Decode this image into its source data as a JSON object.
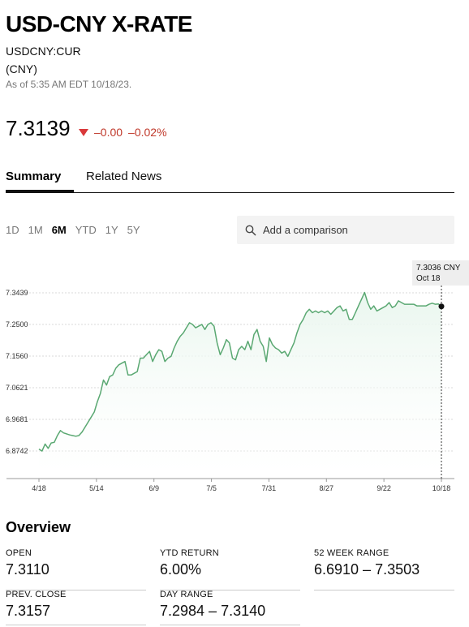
{
  "header": {
    "title": "USD-CNY X-RATE",
    "ticker": "USDCNY:CUR",
    "currency": "(CNY)",
    "as_of": "As of 5:35 AM EDT 10/18/23."
  },
  "quote": {
    "price": "7.3139",
    "change": "–0.00",
    "change_pct": "–0.02%",
    "direction": "down",
    "down_color": "#d9383a"
  },
  "tabs": [
    {
      "label": "Summary",
      "active": true
    },
    {
      "label": "Related News",
      "active": false
    }
  ],
  "ranges": [
    "1D",
    "1M",
    "6M",
    "YTD",
    "1Y",
    "5Y"
  ],
  "active_range": "6M",
  "compare": {
    "placeholder": "Add a comparison",
    "icon": "search-icon"
  },
  "chart_data": {
    "type": "area",
    "line_color": "#5aa872",
    "fill_color": "#e9f6ee",
    "x_tick_labels": [
      "4/18",
      "5/14",
      "6/9",
      "7/5",
      "7/31",
      "8/27",
      "9/22",
      "10/18"
    ],
    "y_tick_labels": [
      "7.3439",
      "7.2500",
      "7.1560",
      "7.0621",
      "6.9681",
      "6.8742"
    ],
    "ylim": [
      6.8742,
      7.3439
    ],
    "grid": "horizontal dashed",
    "tooltip": {
      "value": "7.3036 CNY",
      "date": "Oct 18"
    },
    "series": [
      {
        "x": [
          "4/18",
          "4/19",
          "4/20",
          "4/21",
          "4/24",
          "4/25",
          "4/26",
          "4/27",
          "4/28",
          "5/1",
          "5/2",
          "5/3",
          "5/4",
          "5/5",
          "5/8",
          "5/9",
          "5/10",
          "5/11",
          "5/12",
          "5/15",
          "5/16",
          "5/17",
          "5/18",
          "5/19",
          "5/22",
          "5/23",
          "5/24",
          "5/25",
          "5/26",
          "5/29",
          "5/30",
          "5/31",
          "6/1",
          "6/2",
          "6/5",
          "6/6",
          "6/7",
          "6/8",
          "6/9",
          "6/12",
          "6/13",
          "6/14",
          "6/15",
          "6/16",
          "6/19",
          "6/20",
          "6/21",
          "6/22",
          "6/23",
          "6/26",
          "6/27",
          "6/28",
          "6/29",
          "6/30",
          "7/3",
          "7/4",
          "7/5",
          "7/6",
          "7/7",
          "7/10",
          "7/11",
          "7/12",
          "7/13",
          "7/14",
          "7/17",
          "7/18",
          "7/19",
          "7/20",
          "7/21",
          "7/24",
          "7/25",
          "7/26",
          "7/27",
          "7/28",
          "7/31",
          "8/1",
          "8/2",
          "8/3",
          "8/4",
          "8/7",
          "8/8",
          "8/9",
          "8/10",
          "8/11",
          "8/14",
          "8/15",
          "8/16",
          "8/17",
          "8/18",
          "8/21",
          "8/22",
          "8/23",
          "8/24",
          "8/25",
          "8/28",
          "8/29",
          "8/30",
          "8/31",
          "9/1",
          "9/4",
          "9/5",
          "9/6",
          "9/7",
          "9/8",
          "9/11",
          "9/12",
          "9/13",
          "9/14",
          "9/15",
          "9/18",
          "9/19",
          "9/20",
          "9/21",
          "9/22",
          "9/25",
          "9/26",
          "9/27",
          "9/28",
          "9/29",
          "10/2",
          "10/3",
          "10/4",
          "10/5",
          "10/6",
          "10/9",
          "10/10",
          "10/11",
          "10/12",
          "10/13",
          "10/16",
          "10/17",
          "10/18"
        ],
        "y": [
          6.88,
          6.874,
          6.895,
          6.882,
          6.898,
          6.9,
          6.92,
          6.935,
          6.928,
          6.925,
          6.922,
          6.92,
          6.918,
          6.92,
          6.93,
          6.945,
          6.96,
          6.975,
          6.99,
          7.02,
          7.045,
          7.085,
          7.07,
          7.095,
          7.1,
          7.12,
          7.13,
          7.135,
          7.14,
          7.1,
          7.1,
          7.105,
          7.11,
          7.15,
          7.15,
          7.16,
          7.17,
          7.14,
          7.16,
          7.175,
          7.17,
          7.14,
          7.15,
          7.155,
          7.18,
          7.2,
          7.215,
          7.225,
          7.24,
          7.255,
          7.25,
          7.24,
          7.245,
          7.25,
          7.235,
          7.25,
          7.255,
          7.245,
          7.195,
          7.16,
          7.18,
          7.205,
          7.195,
          7.15,
          7.145,
          7.175,
          7.185,
          7.175,
          7.2,
          7.175,
          7.22,
          7.235,
          7.2,
          7.185,
          7.14,
          7.21,
          7.19,
          7.18,
          7.175,
          7.165,
          7.17,
          7.155,
          7.175,
          7.195,
          7.225,
          7.25,
          7.265,
          7.285,
          7.295,
          7.285,
          7.29,
          7.285,
          7.29,
          7.285,
          7.29,
          7.28,
          7.29,
          7.3,
          7.305,
          7.29,
          7.295,
          7.265,
          7.265,
          7.285,
          7.305,
          7.325,
          7.345,
          7.315,
          7.295,
          7.305,
          7.29,
          7.295,
          7.3,
          7.305,
          7.315,
          7.3,
          7.305,
          7.32,
          7.315,
          7.31,
          7.31,
          7.31,
          7.31,
          7.305,
          7.305,
          7.305,
          7.305,
          7.31,
          7.313,
          7.31,
          7.311,
          7.3036
        ]
      }
    ]
  },
  "overview": {
    "title": "Overview",
    "stats": [
      {
        "label": "OPEN",
        "value": "7.3110"
      },
      {
        "label": "YTD RETURN",
        "value": "6.00%"
      },
      {
        "label": "52 WEEK RANGE",
        "value": "6.6910 – 7.3503"
      },
      {
        "label": "PREV. CLOSE",
        "value": "7.3157"
      },
      {
        "label": "DAY RANGE",
        "value": "7.2984 – 7.3140"
      }
    ]
  }
}
